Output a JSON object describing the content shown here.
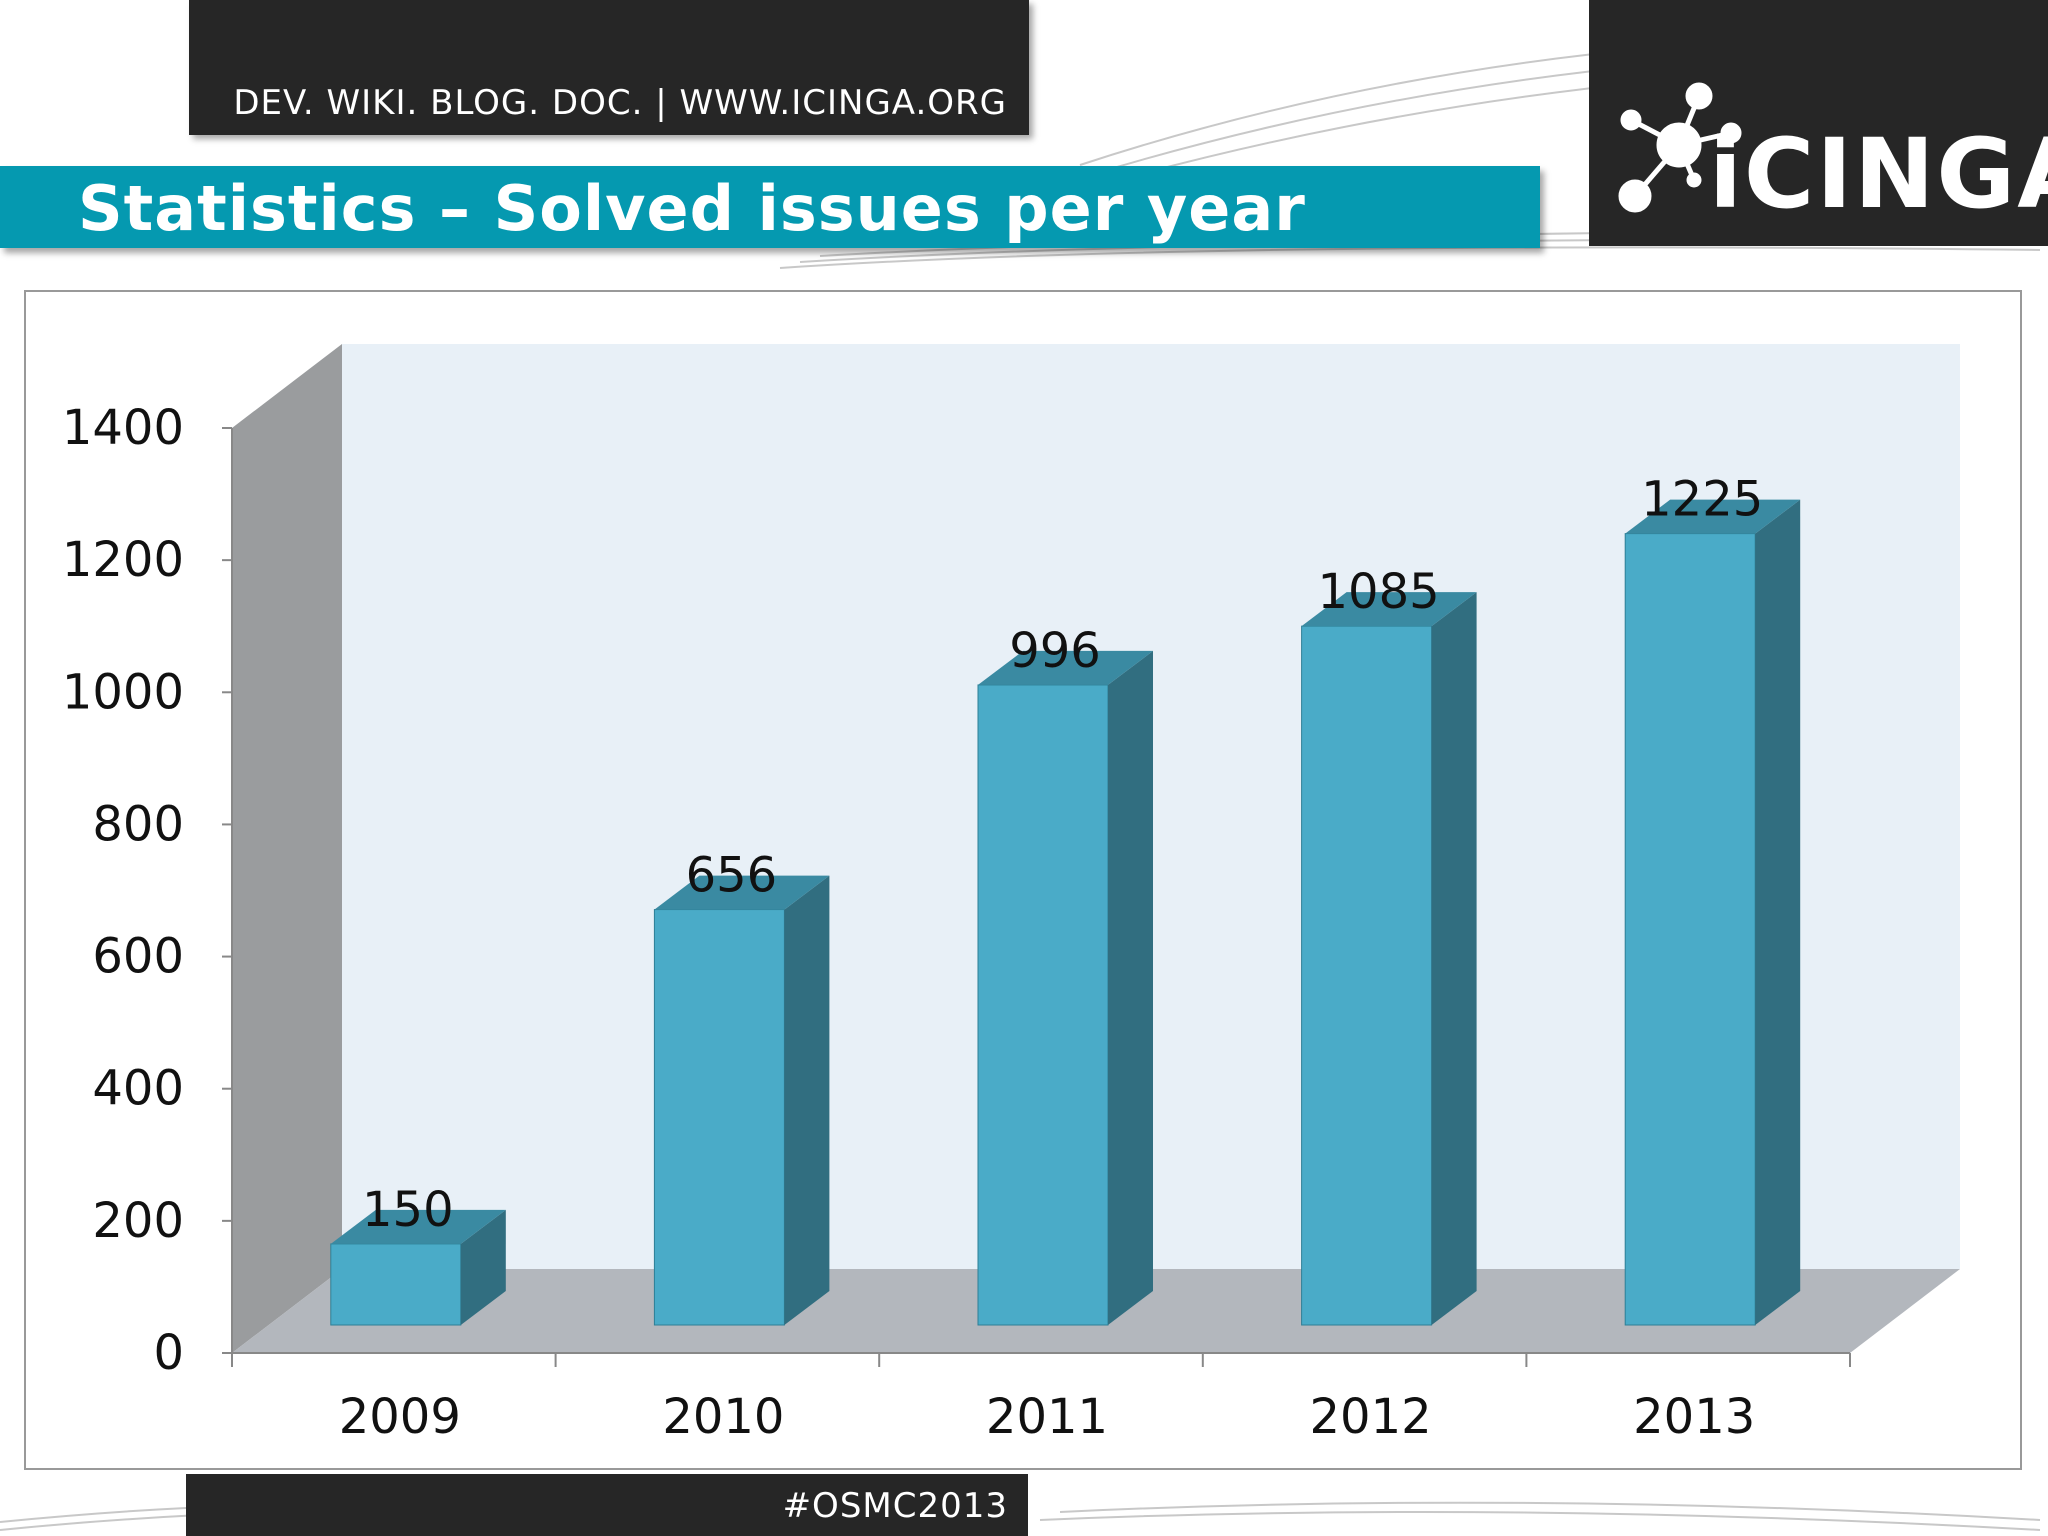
{
  "header": {
    "links_text": "DEV. WIKI. BLOG. DOC.  |  WWW.ICINGA.ORG",
    "title": "Statistics – Solved issues per year",
    "logo_text": "iCINGA"
  },
  "footer": {
    "hashtag": "#OSMC2013"
  },
  "colors": {
    "accent": "#0599b0",
    "dark": "#262626",
    "bar_front": "#4aabc8",
    "bar_side": "#316e80",
    "bar_top": "#3a8aa2",
    "back_wall": "#e8f0f7",
    "side_wall": "#9a9c9e",
    "floor": "#b3b7bd"
  },
  "chart_data": {
    "type": "bar",
    "categories": [
      "2009",
      "2010",
      "2011",
      "2012",
      "2013"
    ],
    "values": [
      150,
      656,
      996,
      1085,
      1225
    ],
    "data_labels": [
      "150",
      "656",
      "996",
      "1085",
      "1225"
    ],
    "title": "",
    "xlabel": "",
    "ylabel": "",
    "ylim": [
      0,
      1400
    ],
    "yticks": [
      "0",
      "200",
      "400",
      "600",
      "800",
      "1000",
      "1200",
      "1400"
    ],
    "style": "3d-column",
    "grid": false,
    "legend": "none"
  }
}
